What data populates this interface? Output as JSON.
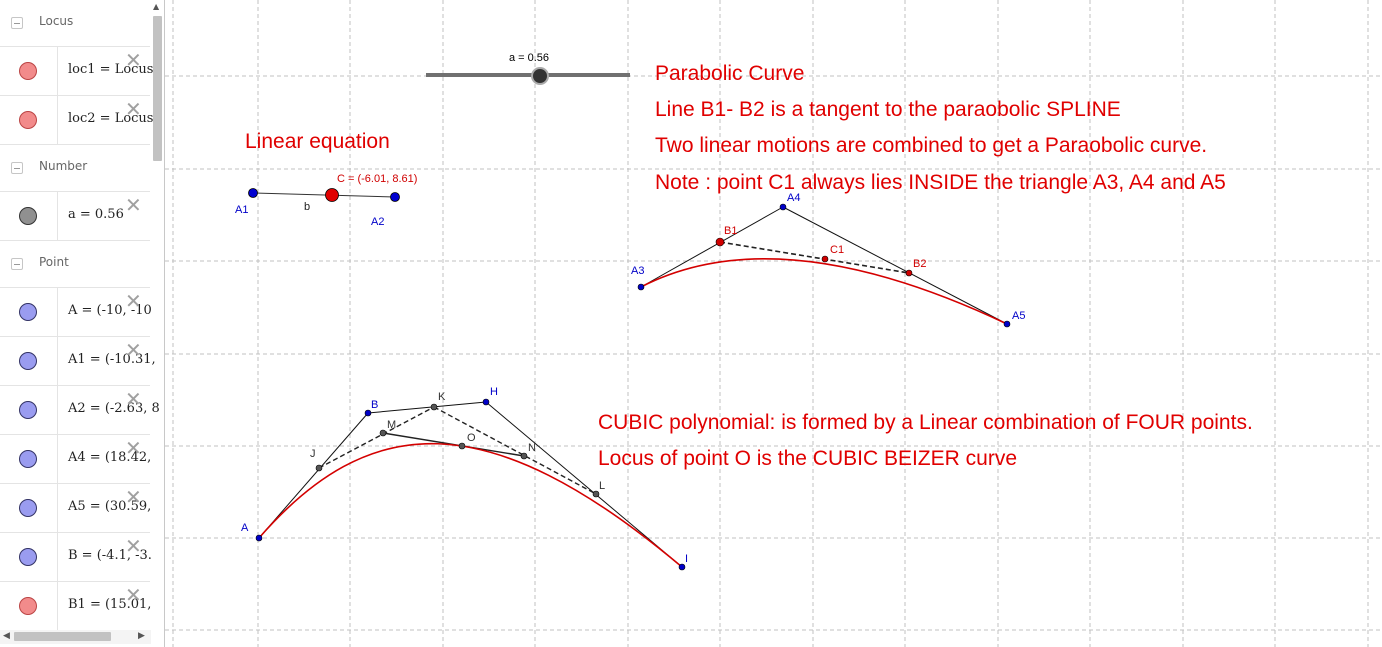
{
  "algebra": {
    "categories": [
      {
        "label": "Locus",
        "items": [
          {
            "def": "loc1 = Locus(",
            "color": "#f4a0a0"
          },
          {
            "def": "loc2 = Locus(",
            "color": "#f4a0a0"
          }
        ]
      },
      {
        "label": "Number",
        "items": [
          {
            "def": "a = 0.56",
            "color": "#9a9a9a"
          }
        ]
      },
      {
        "label": "Point",
        "items": [
          {
            "def": "A = (-10, -10",
            "color": "#a6a8f0"
          },
          {
            "def": "A1 = (-10.31,",
            "color": "#a6a8f0"
          },
          {
            "def": "A2 = (-2.63, 8",
            "color": "#a6a8f0"
          },
          {
            "def": "A4 = (18.42,",
            "color": "#a6a8f0"
          },
          {
            "def": "A5 = (30.59,",
            "color": "#a6a8f0"
          },
          {
            "def": "B = (-4.1, -3.",
            "color": "#a6a8f0"
          },
          {
            "def": "B1 = (15.01,",
            "color": "#f4a0a0"
          }
        ]
      }
    ],
    "close_glyph": "✕"
  },
  "graphics": {
    "slider_label": "a = 0.56",
    "texts": {
      "parabolic_title": "Parabolic Curve",
      "tangent_note": "Line B1- B2 is a tangent to the paraobolic SPLINE",
      "two_linear_note": "Two linear motions are combined to get a Paraobolic curve.",
      "c1_note": "Note : point C1 always lies INSIDE the triangle A3, A4 and A5",
      "linear_title": "Linear equation",
      "cubic_note": "CUBIC polynomial: is formed by a Linear combination of FOUR points.",
      "locus_note": "Locus of point O is the CUBIC BEIZER curve"
    },
    "labels": {
      "A1": "A1",
      "A2": "A2",
      "b": "b",
      "C": "C = (-6.01, 8.61)",
      "A3": "A3",
      "A4": "A4",
      "A5": "A5",
      "B1": "B1",
      "B2": "B2",
      "C1": "C1",
      "A": "A",
      "B": "B",
      "H": "H",
      "I": "I",
      "J": "J",
      "K": "K",
      "L": "L",
      "M": "M",
      "N": "N",
      "O": "O"
    },
    "colors": {
      "annotation_red": "#e00000",
      "point_blue": "#0000c8",
      "point_red": "#d00000",
      "point_dark": "#444444",
      "curve_red": "#d40000"
    }
  }
}
